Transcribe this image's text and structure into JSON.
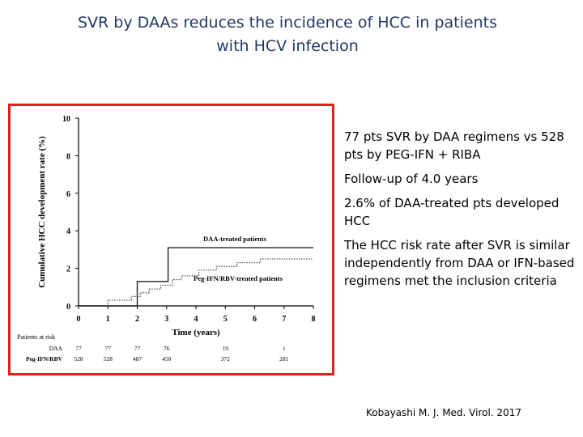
{
  "slide": {
    "title_line1": "SVR by DAAs reduces the incidence of HCC in patients",
    "title_line2": "with HCV infection",
    "bullets": [
      "77 pts SVR by DAA regimens vs 528 pts by PEG-IFN + RIBA",
      "Follow-up of 4.0 years",
      "2.6% of DAA-treated pts developed HCC",
      "The HCC risk rate after SVR is similar independently from DAA or IFN-based regimens met the inclusion criteria"
    ],
    "citation": "Kobayashi M. J. Med. Virol. 2017",
    "colors": {
      "title": "#1f3864",
      "figure_border": "#e0201a"
    }
  },
  "chart_data": {
    "type": "line",
    "title": "",
    "xlabel": "Time (years)",
    "ylabel": "Cumulative HCC development rate (%)",
    "xlim": [
      0,
      8
    ],
    "ylim": [
      0,
      10
    ],
    "xticks": [
      "0",
      "1",
      "2",
      "3",
      "4",
      "5",
      "6",
      "7",
      "8"
    ],
    "yticks": [
      "0",
      "2",
      "4",
      "6",
      "8",
      "10"
    ],
    "series": [
      {
        "name": "DAA-treated patients",
        "style": "solid",
        "x": [
          0,
          2,
          2,
          3.05,
          3.05,
          8
        ],
        "y": [
          0,
          0,
          1.3,
          1.3,
          3.1,
          3.1
        ]
      },
      {
        "name": "Peg-IFN/RBV-treated patients",
        "style": "dotted",
        "x": [
          0,
          1,
          1,
          1.8,
          1.8,
          2.1,
          2.1,
          2.4,
          2.4,
          2.8,
          2.8,
          3.2,
          3.2,
          3.5,
          3.5,
          4.1,
          4.1,
          4.7,
          4.7,
          5.4,
          5.4,
          6.2,
          6.2,
          8
        ],
        "y": [
          0,
          0,
          0.3,
          0.3,
          0.5,
          0.5,
          0.7,
          0.7,
          0.9,
          0.9,
          1.1,
          1.1,
          1.4,
          1.4,
          1.6,
          1.6,
          1.9,
          1.9,
          2.1,
          2.1,
          2.3,
          2.3,
          2.5,
          2.5
        ]
      }
    ],
    "risk_table": {
      "header": "Patients at risk",
      "rows": [
        {
          "label": "DAA",
          "entries": [
            {
              "x": 0,
              "v": "77"
            },
            {
              "x": 1,
              "v": "77"
            },
            {
              "x": 2,
              "v": "77"
            },
            {
              "x": 3,
              "v": "76"
            },
            {
              "x": 5,
              "v": "19"
            },
            {
              "x": 7,
              "v": "1"
            }
          ]
        },
        {
          "label": "Peg-IFN/RBV",
          "entries": [
            {
              "x": 0,
              "v": "528"
            },
            {
              "x": 1,
              "v": "528"
            },
            {
              "x": 2,
              "v": "487"
            },
            {
              "x": 3,
              "v": "450"
            },
            {
              "x": 5,
              "v": "372"
            },
            {
              "x": 7,
              "v": "281"
            }
          ]
        }
      ]
    }
  }
}
